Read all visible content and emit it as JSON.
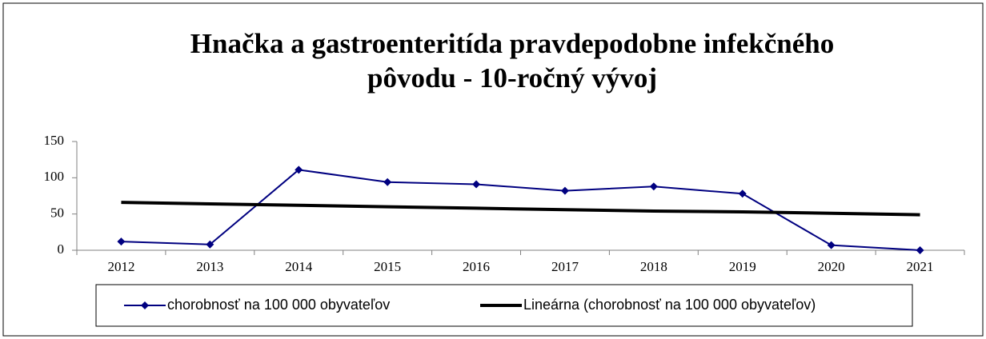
{
  "chart_data": {
    "type": "line",
    "title": [
      "Hnačka a gastroenteritída pravdepodobne infekčného",
      "pôvodu - 10-ročný vývoj"
    ],
    "categories": [
      "2012",
      "2013",
      "2014",
      "2015",
      "2016",
      "2017",
      "2018",
      "2019",
      "2020",
      "2021"
    ],
    "series": [
      {
        "name": "chorobnosť na 100 000 obyvateľov",
        "color": "#000080",
        "marker": "diamond",
        "values": [
          12,
          8,
          111,
          94,
          91,
          82,
          88,
          78,
          7,
          0
        ]
      },
      {
        "name": "Lineárna (chorobnosť na 100 000 obyvateľov)",
        "color": "#000000",
        "values": [
          66,
          64,
          62,
          60,
          58,
          56,
          54,
          53,
          51,
          49
        ]
      }
    ],
    "ylim": [
      0,
      150
    ],
    "yticks": [
      0,
      50,
      100,
      150
    ],
    "grid": false,
    "legend": "bottom"
  }
}
